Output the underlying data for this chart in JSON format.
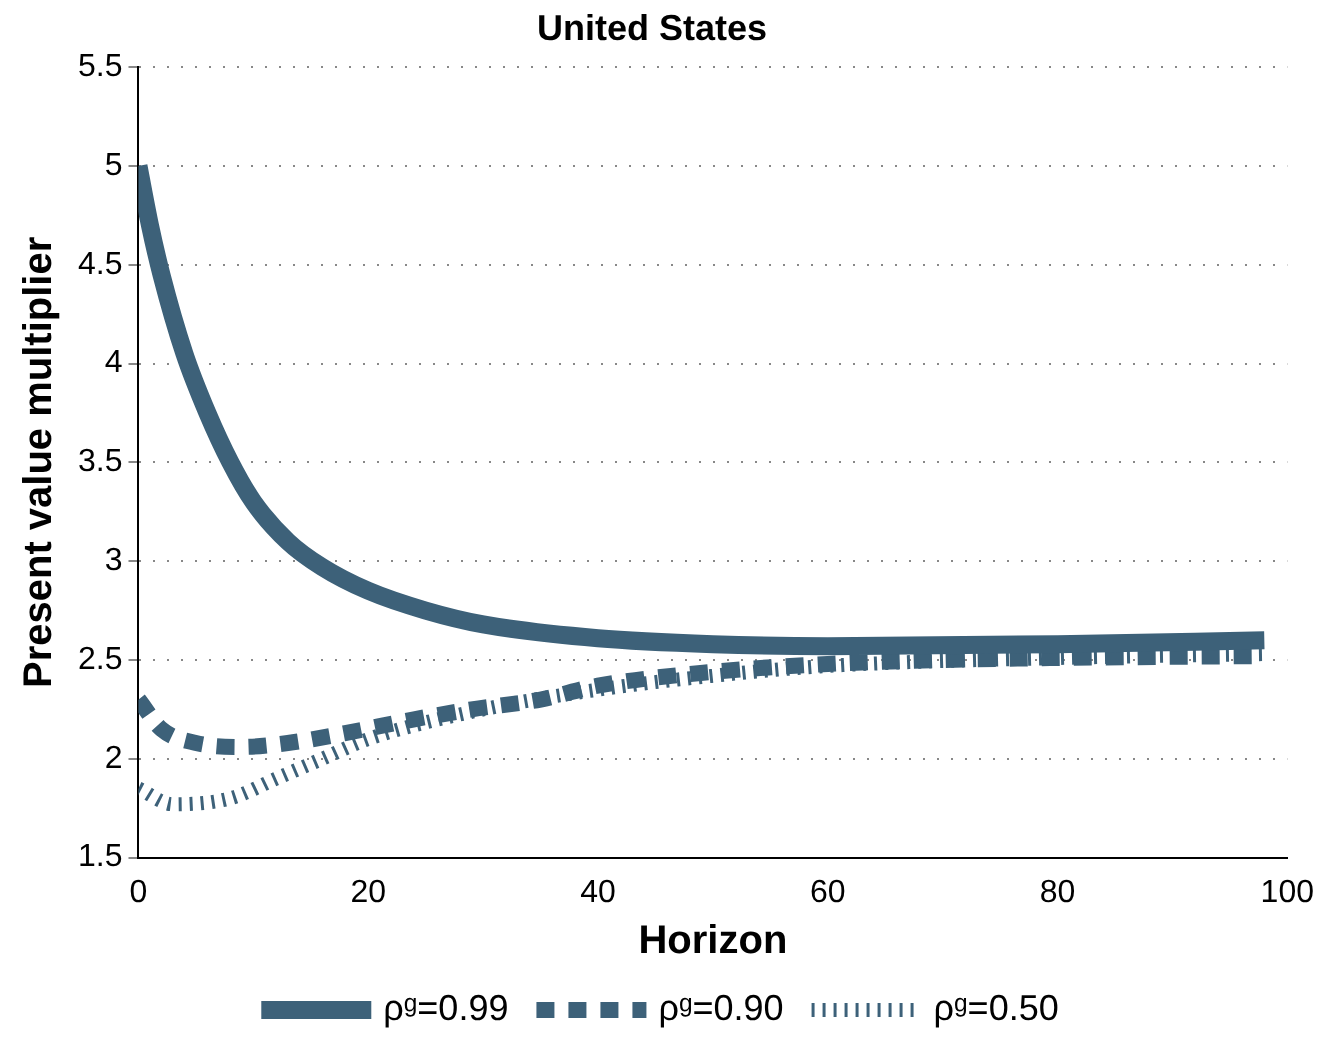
{
  "chart_data": {
    "type": "line",
    "title": "United States",
    "xlabel": "Horizon",
    "ylabel": "Present value multiplier",
    "xlim": [
      0,
      100
    ],
    "xticks": [
      0,
      20,
      40,
      60,
      80,
      100
    ],
    "ylim": [
      1.5,
      5.5
    ],
    "yticks": [
      1.5,
      2,
      2.5,
      3,
      3.5,
      4,
      4.5,
      5,
      5.5
    ],
    "grid": "y",
    "legend": "bottom",
    "marker": "none",
    "series": [
      {
        "name": "ρᵍ=0.99",
        "color": "#3d6179",
        "line_style": "solid",
        "x": [
          0,
          1,
          2,
          4,
          6,
          8,
          10,
          13,
          16,
          20,
          25,
          30,
          40,
          50,
          60,
          80,
          98
        ],
        "values": [
          5.0,
          4.7,
          4.45,
          4.05,
          3.75,
          3.5,
          3.3,
          3.1,
          2.97,
          2.85,
          2.75,
          2.68,
          2.61,
          2.58,
          2.57,
          2.58,
          2.6
        ]
      },
      {
        "name": "ρᵍ=0.90",
        "color": "#3d6179",
        "line_style": "dashed",
        "x": [
          0,
          2,
          5,
          9,
          13,
          18,
          24,
          29,
          35,
          40,
          50,
          60,
          70,
          80,
          98
        ],
        "values": [
          2.3,
          2.15,
          2.08,
          2.06,
          2.08,
          2.13,
          2.2,
          2.25,
          2.3,
          2.37,
          2.44,
          2.48,
          2.5,
          2.51,
          2.52
        ]
      },
      {
        "name": "ρᵍ=0.50",
        "color": "#3d6179",
        "line_style": "dotted",
        "x": [
          0,
          3,
          8,
          12,
          16,
          20,
          30,
          40,
          50,
          60,
          80,
          98
        ],
        "values": [
          1.85,
          1.77,
          1.8,
          1.9,
          2.0,
          2.1,
          2.25,
          2.35,
          2.42,
          2.47,
          2.51,
          2.53
        ]
      }
    ]
  }
}
